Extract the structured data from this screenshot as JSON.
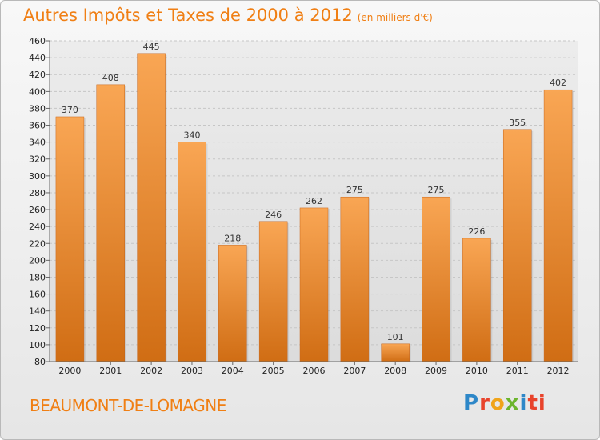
{
  "header": {
    "title": "Autres Impôts et Taxes de 2000 à 2012",
    "subtitle": "(en milliers d'€)"
  },
  "footer": {
    "commune": "BEAUMONT-DE-LOMAGNE",
    "logo_letters": [
      "P",
      "r",
      "o",
      "x",
      "i",
      "ti"
    ]
  },
  "colors": {
    "accent": "#f07f14",
    "bar_top": "#f9a654",
    "bar_bottom": "#d06d14"
  },
  "chart_data": {
    "type": "bar",
    "title": "Autres Impôts et Taxes de 2000 à 2012",
    "subtitle": "(en milliers d'€)",
    "categories": [
      "2000",
      "2001",
      "2002",
      "2003",
      "2004",
      "2005",
      "2006",
      "2007",
      "2008",
      "2009",
      "2010",
      "2011",
      "2012"
    ],
    "values": [
      370,
      408,
      445,
      340,
      218,
      246,
      262,
      275,
      101,
      275,
      226,
      355,
      402
    ],
    "ylim": [
      80,
      460
    ],
    "yticks": [
      80,
      100,
      120,
      140,
      160,
      180,
      200,
      220,
      240,
      260,
      280,
      300,
      320,
      340,
      360,
      380,
      400,
      420,
      440,
      460
    ],
    "grid": true
  }
}
